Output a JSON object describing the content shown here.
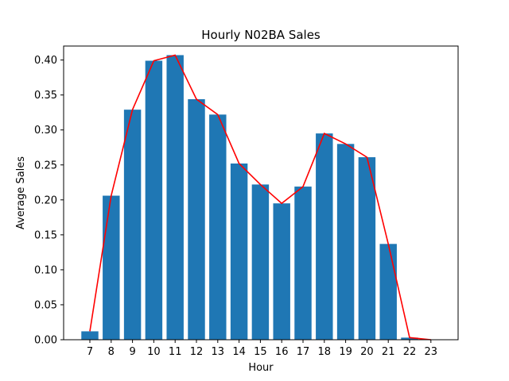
{
  "chart_data": {
    "type": "bar",
    "title": "Hourly N02BA Sales",
    "xlabel": "Hour",
    "ylabel": "Average Sales",
    "categories": [
      "7",
      "8",
      "9",
      "10",
      "11",
      "12",
      "13",
      "14",
      "15",
      "16",
      "17",
      "18",
      "19",
      "20",
      "21",
      "22",
      "23"
    ],
    "values": [
      0.012,
      0.206,
      0.329,
      0.399,
      0.407,
      0.344,
      0.322,
      0.252,
      0.222,
      0.195,
      0.219,
      0.295,
      0.28,
      0.261,
      0.137,
      0.003,
      0.0
    ],
    "line_overlay": true,
    "ylim": [
      0,
      0.42
    ],
    "yticks": [
      0.0,
      0.05,
      0.1,
      0.15,
      0.2,
      0.25,
      0.3,
      0.35,
      0.4
    ],
    "ytick_labels": [
      "0.00",
      "0.05",
      "0.10",
      "0.15",
      "0.20",
      "0.25",
      "0.30",
      "0.35",
      "0.40"
    ],
    "bar_color": "#1f77b4",
    "line_color": "#ff0000",
    "grid": false,
    "legend": "none"
  }
}
